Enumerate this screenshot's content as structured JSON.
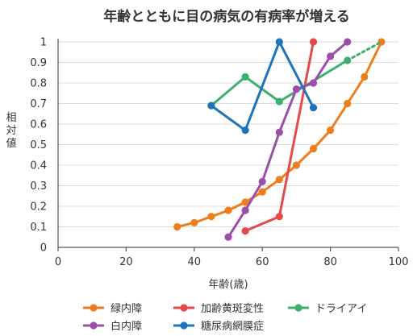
{
  "chart_data": {
    "type": "line",
    "title": "年齢とともに目の病気の有病率が増える",
    "xlabel": "年齢(歳)",
    "ylabel": "相対値",
    "xlim": [
      0,
      100
    ],
    "ylim": [
      0,
      1
    ],
    "xticks": [
      "0",
      "20",
      "40",
      "60",
      "80",
      "100"
    ],
    "yticks": [
      "0",
      "0.1",
      "0.2",
      "0.3",
      "0.4",
      "0.5",
      "0.6",
      "0.7",
      "0.8",
      "0.9",
      "1"
    ],
    "grid": "horizontal",
    "legend_position": "bottom",
    "series": [
      {
        "name": "緑内障",
        "color": "#EE7D1E",
        "points": [
          [
            35,
            0.1
          ],
          [
            40,
            0.12
          ],
          [
            45,
            0.15
          ],
          [
            50,
            0.18
          ],
          [
            55,
            0.22
          ],
          [
            60,
            0.27
          ],
          [
            65,
            0.33
          ],
          [
            70,
            0.4
          ],
          [
            75,
            0.48
          ],
          [
            80,
            0.57
          ],
          [
            85,
            0.7
          ],
          [
            90,
            0.83
          ],
          [
            95,
            1.0
          ]
        ]
      },
      {
        "name": "加齢黄斑変性",
        "color": "#E54A4A",
        "points": [
          [
            55,
            0.08
          ],
          [
            65,
            0.15
          ],
          [
            75,
            1.0
          ]
        ]
      },
      {
        "name": "ドライアイ",
        "color": "#3DB06E",
        "points": [
          [
            45,
            0.69
          ],
          [
            55,
            0.83
          ],
          [
            65,
            0.71
          ],
          [
            85,
            0.91
          ]
        ],
        "dotted_extension_to": [
          95,
          1.0
        ]
      },
      {
        "name": "白内障",
        "color": "#9B4FA8",
        "points": [
          [
            50,
            0.05
          ],
          [
            55,
            0.18
          ],
          [
            60,
            0.32
          ],
          [
            65,
            0.56
          ],
          [
            70,
            0.77
          ],
          [
            75,
            0.8
          ],
          [
            80,
            0.93
          ],
          [
            85,
            1.0
          ]
        ]
      },
      {
        "name": "糖尿病網膜症",
        "color": "#1D74BB",
        "points": [
          [
            45,
            0.69
          ],
          [
            55,
            0.57
          ],
          [
            65,
            1.0
          ],
          [
            75,
            0.68
          ]
        ]
      }
    ]
  }
}
